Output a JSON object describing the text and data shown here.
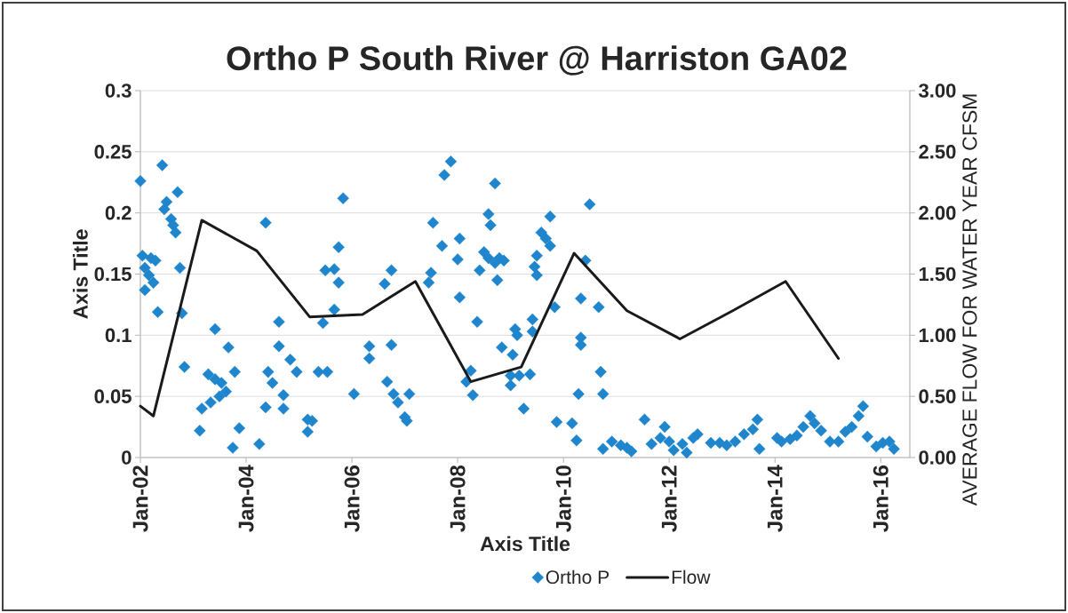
{
  "chart_data": {
    "type": "scatter",
    "title": "Ortho P South River @ Harriston GA02",
    "xlabel": "Axis Title",
    "ylabel": "Axis Title",
    "y2label": "AVERAGE FLOW FOR WATER YEAR CFSM",
    "xlim": [
      "2002-01-01",
      "2016-07-20"
    ],
    "xticks": [
      {
        "value": "2002-01-01",
        "label": "Jan-02"
      },
      {
        "value": "2004-01-01",
        "label": "Jan-04"
      },
      {
        "value": "2006-01-01",
        "label": "Jan-06"
      },
      {
        "value": "2008-01-01",
        "label": "Jan-08"
      },
      {
        "value": "2010-01-01",
        "label": "Jan-10"
      },
      {
        "value": "2012-01-01",
        "label": "Jan-12"
      },
      {
        "value": "2014-01-01",
        "label": "Jan-14"
      },
      {
        "value": "2016-01-01",
        "label": "Jan-16"
      }
    ],
    "ylim": [
      0,
      0.3
    ],
    "yticks": [
      0,
      0.05,
      0.1,
      0.15,
      0.2,
      0.25,
      0.3
    ],
    "y2lim": [
      0,
      3
    ],
    "y2ticks": [
      {
        "value": 0,
        "label": "0.00"
      },
      {
        "value": 0.5,
        "label": "0.50"
      },
      {
        "value": 1,
        "label": "1.00"
      },
      {
        "value": 1.5,
        "label": "1.50"
      },
      {
        "value": 2,
        "label": "2.00"
      },
      {
        "value": 2.5,
        "label": "2.50"
      },
      {
        "value": 3,
        "label": "3.00"
      }
    ],
    "grid": "y",
    "legend": "bottom",
    "series": [
      {
        "name": "Ortho P",
        "color": "#1f86cd",
        "marker": "diamond",
        "x": [
          "2002-01-01",
          "2002-06-01",
          "2002-09-15",
          "2002-07-01",
          "2002-06-15",
          "2002-08-01",
          "2002-08-15",
          "2002-09-01",
          "2002-01-15",
          "2002-03-15",
          "2002-04-15",
          "2002-02-01",
          "2002-10-01",
          "2002-03-01",
          "2002-04-01",
          "2002-02-01",
          "2002-05-01",
          "2002-10-15",
          "2002-11-01",
          "2003-06-01",
          "2003-09-01",
          "2003-10-15",
          "2003-04-15",
          "2003-06-01",
          "2003-07-15",
          "2003-08-15",
          "2003-07-01",
          "2003-05-01",
          "2003-03-01",
          "2003-02-15",
          "2003-10-01",
          "2003-11-15",
          "2004-04-01",
          "2004-05-15",
          "2004-08-15",
          "2004-08-15",
          "2004-11-01",
          "2004-12-15",
          "2004-06-01",
          "2004-07-01",
          "2004-09-15",
          "2004-05-15",
          "2004-09-15",
          "2005-03-01",
          "2005-04-01",
          "2005-03-01",
          "2005-11-01",
          "2005-10-01",
          "2005-07-01",
          "2005-09-01",
          "2005-10-01",
          "2005-09-01",
          "2005-06-15",
          "2005-05-15",
          "2005-07-15",
          "2006-01-15",
          "2006-05-01",
          "2006-05-01",
          "2006-10-01",
          "2006-10-01",
          "2006-08-15",
          "2006-09-01",
          "2006-10-15",
          "2006-11-15",
          "2007-02-01",
          "2007-01-01",
          "2007-01-15",
          "2007-06-15",
          "2007-07-01",
          "2007-11-15",
          "2007-10-01",
          "2007-07-15",
          "2007-09-15",
          "2008-01-15",
          "2008-01-01",
          "2008-01-15",
          "2008-05-15",
          "2008-04-01",
          "2008-03-01",
          "2008-04-15",
          "2008-09-15",
          "2008-08-01",
          "2008-08-15",
          "2008-07-01",
          "2008-08-01",
          "2008-10-15",
          "2008-09-15",
          "2008-06-01",
          "2008-10-01",
          "2008-11-15",
          "2008-11-01",
          "2009-01-15",
          "2009-02-01",
          "2009-02-15",
          "2009-06-01",
          "2009-06-01",
          "2009-01-01",
          "2009-01-01",
          "2009-03-01",
          "2009-05-15",
          "2009-04-01",
          "2009-07-01",
          "2009-06-15",
          "2009-07-01",
          "2009-08-01",
          "2009-09-01",
          "2009-10-01",
          "2009-10-01",
          "2009-11-01",
          "2009-11-15",
          "2010-03-01",
          "2010-04-01",
          "2010-04-15",
          "2010-05-01",
          "2010-06-01",
          "2010-05-01",
          "2010-05-01",
          "2010-07-01",
          "2010-09-01",
          "2010-09-15",
          "2010-10-01",
          "2010-10-01",
          "2010-12-01",
          "2011-02-01",
          "2011-04-15",
          "2011-03-15",
          "2011-07-15",
          "2011-09-01",
          "2011-11-01",
          "2011-12-01",
          "2012-01-01",
          "2012-02-01",
          "2012-04-01",
          "2012-05-01",
          "2012-06-15",
          "2012-07-15",
          "2012-10-15",
          "2012-12-15",
          "2013-02-01",
          "2013-04-01",
          "2013-06-01",
          "2013-08-01",
          "2013-09-01",
          "2013-09-15",
          "2014-01-15",
          "2014-02-15",
          "2014-04-15",
          "2014-06-01",
          "2014-07-15",
          "2014-09-01",
          "2014-10-01",
          "2014-11-15",
          "2015-01-15",
          "2015-03-15",
          "2015-05-01",
          "2015-06-15",
          "2015-08-01",
          "2015-09-01",
          "2015-10-01",
          "2015-12-01",
          "2016-01-15",
          "2016-03-01",
          "2016-04-01"
        ],
        "values": [
          0.226,
          0.239,
          0.217,
          0.209,
          0.203,
          0.195,
          0.19,
          0.184,
          0.165,
          0.163,
          0.161,
          0.155,
          0.155,
          0.149,
          0.143,
          0.137,
          0.119,
          0.118,
          0.074,
          0.105,
          0.09,
          0.07,
          0.068,
          0.064,
          0.061,
          0.054,
          0.05,
          0.045,
          0.04,
          0.022,
          0.008,
          0.024,
          0.011,
          0.192,
          0.111,
          0.091,
          0.08,
          0.07,
          0.07,
          0.061,
          0.051,
          0.041,
          0.04,
          0.031,
          0.03,
          0.021,
          0.212,
          0.172,
          0.153,
          0.154,
          0.143,
          0.121,
          0.11,
          0.07,
          0.07,
          0.052,
          0.091,
          0.081,
          0.092,
          0.153,
          0.142,
          0.062,
          0.052,
          0.045,
          0.052,
          0.033,
          0.03,
          0.143,
          0.151,
          0.242,
          0.231,
          0.192,
          0.173,
          0.179,
          0.162,
          0.131,
          0.111,
          0.071,
          0.062,
          0.051,
          0.224,
          0.199,
          0.19,
          0.168,
          0.163,
          0.163,
          0.159,
          0.153,
          0.145,
          0.161,
          0.09,
          0.084,
          0.105,
          0.1,
          0.113,
          0.103,
          0.067,
          0.059,
          0.067,
          0.068,
          0.04,
          0.165,
          0.156,
          0.149,
          0.184,
          0.179,
          0.173,
          0.197,
          0.123,
          0.029,
          0.028,
          0.014,
          0.052,
          0.13,
          0.161,
          0.098,
          0.092,
          0.207,
          0.123,
          0.07,
          0.052,
          0.007,
          0.013,
          0.01,
          0.005,
          0.008,
          0.031,
          0.011,
          0.016,
          0.025,
          0.013,
          0.006,
          0.011,
          0.004,
          0.016,
          0.019,
          0.012,
          0.012,
          0.01,
          0.013,
          0.019,
          0.023,
          0.031,
          0.007,
          0.016,
          0.013,
          0.015,
          0.018,
          0.025,
          0.034,
          0.028,
          0.022,
          0.013,
          0.013,
          0.021,
          0.025,
          0.034,
          0.042,
          0.017,
          0.009,
          0.012,
          0.013,
          0.007
        ]
      },
      {
        "name": "Flow",
        "type": "line",
        "axis": "y2",
        "color": "#1a1a1a",
        "marker": "none",
        "line_style": "solid",
        "x": [
          "2002-01-01",
          "2002-04-01",
          "2003-03-01",
          "2004-03-15",
          "2005-03-15",
          "2006-03-15",
          "2007-03-15",
          "2008-04-01",
          "2009-03-15",
          "2010-03-15",
          "2011-03-15",
          "2012-03-15",
          "2013-03-15",
          "2014-03-15",
          "2015-03-15"
        ],
        "values": [
          0.42,
          0.34,
          1.94,
          1.69,
          1.15,
          1.17,
          1.44,
          0.62,
          0.74,
          1.67,
          1.2,
          0.97,
          1.2,
          1.44,
          0.81
        ]
      }
    ]
  }
}
